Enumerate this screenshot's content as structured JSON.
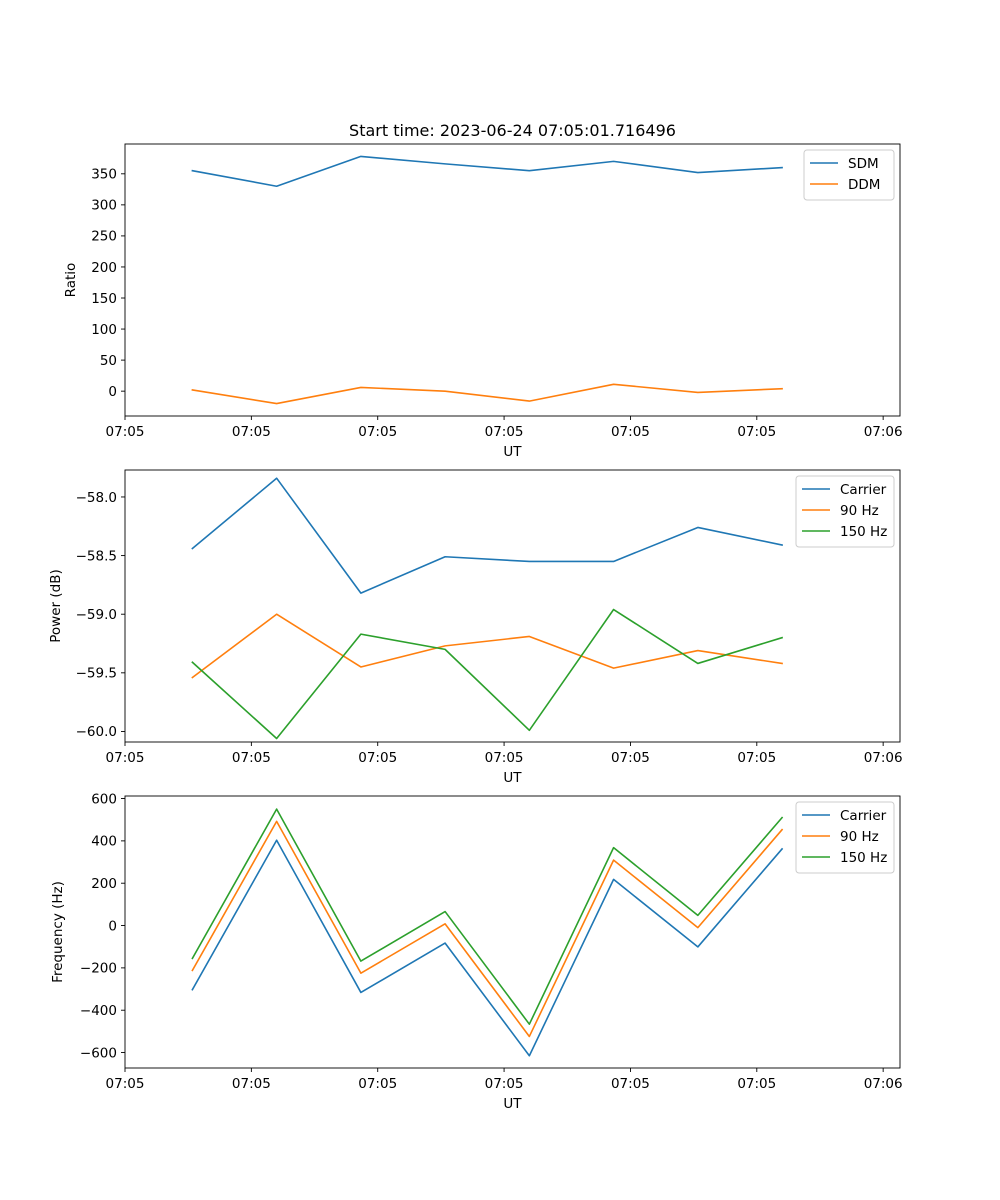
{
  "figure_title": "Start time: 2023-06-24 07:05:01.716496",
  "colors": {
    "blue": "#1f77b4",
    "orange": "#ff7f0e",
    "green": "#2ca02c"
  },
  "chart_data": [
    {
      "type": "line",
      "title": "Start time: 2023-06-24 07:05:01.716496",
      "xlabel": "UT",
      "ylabel": "Ratio",
      "x": [
        1,
        2,
        3,
        4,
        5,
        6,
        7,
        8
      ],
      "xlim": [
        0.2,
        9.4
      ],
      "xticks": [
        0.2,
        1.7,
        3.2,
        4.7,
        6.2,
        7.7,
        9.2
      ],
      "xticklabels": [
        "07:05",
        "07:05",
        "07:05",
        "07:05",
        "07:05",
        "07:05",
        "07:06"
      ],
      "ylim": [
        -40,
        398
      ],
      "yticks": [
        0,
        50,
        100,
        150,
        200,
        250,
        300,
        350
      ],
      "legend_position": "upper-right",
      "series": [
        {
          "name": "SDM",
          "color": "#1f77b4",
          "values": [
            355,
            330,
            378,
            366,
            355,
            370,
            352,
            360
          ]
        },
        {
          "name": "DDM",
          "color": "#ff7f0e",
          "values": [
            2,
            -20,
            6,
            0,
            -16,
            11,
            -2,
            4
          ]
        }
      ]
    },
    {
      "type": "line",
      "title": "",
      "xlabel": "UT",
      "ylabel": "Power (dB)",
      "x": [
        1,
        2,
        3,
        4,
        5,
        6,
        7,
        8
      ],
      "xlim": [
        0.2,
        9.4
      ],
      "xticks": [
        0.2,
        1.7,
        3.2,
        4.7,
        6.2,
        7.7,
        9.2
      ],
      "xticklabels": [
        "07:05",
        "07:05",
        "07:05",
        "07:05",
        "07:05",
        "07:05",
        "07:06"
      ],
      "ylim": [
        -60.09,
        -57.77
      ],
      "yticks": [
        -60.0,
        -59.5,
        -59.0,
        -58.5,
        -58.0
      ],
      "ytickformat": 1,
      "legend_position": "upper-right",
      "series": [
        {
          "name": "Carrier",
          "color": "#1f77b4",
          "values": [
            -58.44,
            -57.84,
            -58.82,
            -58.51,
            -58.55,
            -58.55,
            -58.26,
            -58.41
          ]
        },
        {
          "name": "90 Hz",
          "color": "#ff7f0e",
          "values": [
            -59.54,
            -59.0,
            -59.45,
            -59.27,
            -59.19,
            -59.46,
            -59.31,
            -59.42
          ]
        },
        {
          "name": "150 Hz",
          "color": "#2ca02c",
          "values": [
            -59.41,
            -60.06,
            -59.17,
            -59.3,
            -59.99,
            -58.96,
            -59.42,
            -59.2
          ]
        }
      ]
    },
    {
      "type": "line",
      "title": "",
      "xlabel": "UT",
      "ylabel": "Frequency (Hz)",
      "x": [
        1,
        2,
        3,
        4,
        5,
        6,
        7,
        8
      ],
      "xlim": [
        0.2,
        9.4
      ],
      "xticks": [
        0.2,
        1.7,
        3.2,
        4.7,
        6.2,
        7.7,
        9.2
      ],
      "xticklabels": [
        "07:05",
        "07:05",
        "07:05",
        "07:05",
        "07:05",
        "07:05",
        "07:06"
      ],
      "ylim": [
        -673,
        612
      ],
      "yticks": [
        -600,
        -400,
        -200,
        0,
        200,
        400,
        600
      ],
      "legend_position": "upper-right",
      "series": [
        {
          "name": "Carrier",
          "color": "#1f77b4",
          "values": [
            -303,
            403,
            -316,
            -83,
            -615,
            218,
            -101,
            362
          ]
        },
        {
          "name": "90 Hz",
          "color": "#ff7f0e",
          "values": [
            -212,
            492,
            -225,
            8,
            -524,
            309,
            -10,
            453
          ]
        },
        {
          "name": "150 Hz",
          "color": "#2ca02c",
          "values": [
            -155,
            550,
            -168,
            66,
            -466,
            368,
            48,
            510
          ]
        }
      ]
    }
  ]
}
